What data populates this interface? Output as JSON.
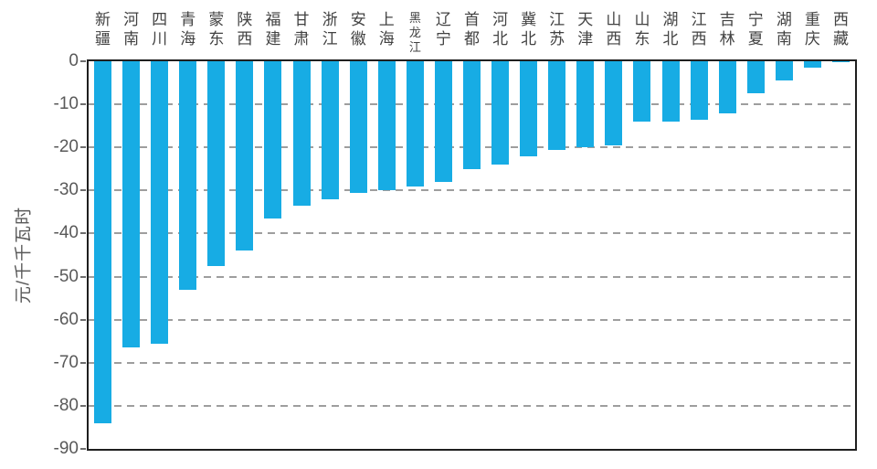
{
  "page": {
    "background": "#ffffff"
  },
  "chart_data": {
    "type": "bar",
    "title": "",
    "xlabel": "",
    "ylabel": "元/千千瓦时",
    "ylim": [
      -90,
      0
    ],
    "yticks": [
      0,
      -10,
      -20,
      -30,
      -40,
      -50,
      -60,
      -70,
      -80,
      -90
    ],
    "grid": true,
    "legend_position": "none",
    "categories": [
      "新疆",
      "河南",
      "四川",
      "青海",
      "蒙东",
      "陕西",
      "福建",
      "甘肃",
      "浙江",
      "安徽",
      "上海",
      "黑龙江",
      "辽宁",
      "首都",
      "河北",
      "冀北",
      "江苏",
      "天津",
      "山西",
      "山东",
      "湖北",
      "江西",
      "吉林",
      "宁夏",
      "湖南",
      "重庆",
      "西藏"
    ],
    "values": [
      -84,
      -66.5,
      -65.5,
      -53,
      -47.5,
      -44,
      -36.5,
      -33.5,
      -32,
      -30.5,
      -30,
      -29,
      -28,
      -25,
      -24,
      -22,
      -20.5,
      -20,
      -19.5,
      -14,
      -14,
      -13.5,
      -12,
      -7.5,
      -4.5,
      -1.5,
      -0.3
    ],
    "bar_color": "#17ACE4",
    "gridline_color": "#9E9E9E",
    "axis_border_color": "#1F1F1F",
    "tick_label_color": "#595959",
    "category_label_color": "#424242"
  }
}
